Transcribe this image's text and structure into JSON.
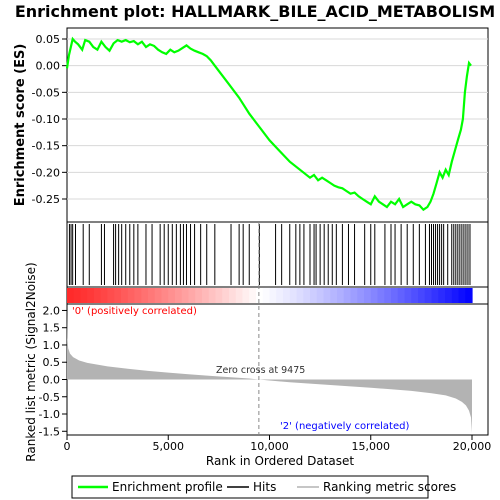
{
  "chart_data": [
    {
      "type": "line",
      "title": "Enrichment plot: HALLMARK_BILE_ACID_METABOLISM",
      "ylabel": "Enrichment score (ES)",
      "ylim": [
        -0.28,
        0.065
      ],
      "yticks": [
        0.05,
        0.0,
        -0.05,
        -0.1,
        -0.15,
        -0.2,
        -0.25
      ],
      "ytick_labels": [
        "0.05",
        "0.00",
        "-0.05",
        "-0.10",
        "-0.15",
        "-0.20",
        "-0.25"
      ],
      "xlim": [
        0,
        20000
      ],
      "series": [
        {
          "name": "Enrichment profile",
          "color": "#00ff00",
          "x": [
            0,
            100,
            280,
            400,
            550,
            750,
            900,
            1100,
            1300,
            1500,
            1700,
            1900,
            2100,
            2300,
            2500,
            2700,
            2900,
            3100,
            3300,
            3500,
            3700,
            3900,
            4100,
            4300,
            4500,
            4700,
            4900,
            5100,
            5300,
            5500,
            5700,
            5900,
            6100,
            6300,
            6500,
            6700,
            6900,
            7100,
            7300,
            7600,
            8000,
            8500,
            9000,
            9500,
            10000,
            10500,
            11000,
            11500,
            12000,
            12200,
            12400,
            12600,
            12800,
            13000,
            13200,
            13400,
            13600,
            13800,
            14000,
            14200,
            14400,
            14600,
            14800,
            15000,
            15200,
            15400,
            15600,
            15800,
            16000,
            16200,
            16400,
            16600,
            16800,
            17000,
            17200,
            17400,
            17600,
            17800,
            17950,
            18100,
            18250,
            18400,
            18550,
            18700,
            18850,
            19000,
            19150,
            19300,
            19450,
            19550,
            19650,
            19750,
            19850,
            19950
          ],
          "y": [
            -0.005,
            0.02,
            0.05,
            0.045,
            0.04,
            0.03,
            0.048,
            0.045,
            0.035,
            0.03,
            0.045,
            0.035,
            0.028,
            0.042,
            0.048,
            0.045,
            0.048,
            0.044,
            0.046,
            0.04,
            0.045,
            0.035,
            0.04,
            0.037,
            0.03,
            0.025,
            0.022,
            0.03,
            0.025,
            0.028,
            0.033,
            0.038,
            0.032,
            0.028,
            0.025,
            0.022,
            0.018,
            0.01,
            0.0,
            -0.015,
            -0.035,
            -0.06,
            -0.09,
            -0.115,
            -0.14,
            -0.16,
            -0.18,
            -0.195,
            -0.21,
            -0.205,
            -0.215,
            -0.21,
            -0.215,
            -0.22,
            -0.225,
            -0.228,
            -0.23,
            -0.235,
            -0.24,
            -0.238,
            -0.245,
            -0.25,
            -0.255,
            -0.26,
            -0.245,
            -0.255,
            -0.26,
            -0.265,
            -0.255,
            -0.26,
            -0.25,
            -0.265,
            -0.26,
            -0.255,
            -0.26,
            -0.262,
            -0.27,
            -0.265,
            -0.255,
            -0.24,
            -0.22,
            -0.2,
            -0.21,
            -0.195,
            -0.205,
            -0.18,
            -0.16,
            -0.14,
            -0.12,
            -0.1,
            -0.05,
            -0.02,
            0.005,
            0.0
          ]
        }
      ]
    },
    {
      "type": "bar",
      "name": "gene-set hits",
      "hits_color": "#000000",
      "hit_ranks": [
        120,
        200,
        280,
        420,
        800,
        1100,
        1700,
        1850,
        2300,
        2400,
        2550,
        2700,
        2900,
        3100,
        3300,
        3500,
        3900,
        4200,
        4600,
        4800,
        5000,
        5200,
        5400,
        5600,
        5750,
        5900,
        6100,
        6300,
        6600,
        6900,
        7300,
        8100,
        8500,
        8700,
        9000,
        9500,
        10300,
        10600,
        11000,
        11300,
        11500,
        11700,
        12000,
        12200,
        12300,
        12500,
        12700,
        12900,
        13100,
        13300,
        13600,
        13900,
        14200,
        14700,
        15000,
        15200,
        15700,
        16000,
        16200,
        16500,
        16800,
        17100,
        17400,
        17700,
        17900,
        18000,
        18100,
        18200,
        18300,
        18400,
        18500,
        18600,
        18800,
        19000,
        19100,
        19200,
        19300,
        19400,
        19500,
        19600,
        19700,
        19800,
        19900
      ]
    },
    {
      "type": "heatmap",
      "name": "rank-metric color band",
      "red_end_rank": 9475,
      "colors": [
        "#ff0000",
        "#0000ff"
      ]
    },
    {
      "type": "area",
      "ylabel": "Ranked list metric (Signal2Noise)",
      "xlabel": "Rank in Ordered Dataset",
      "xlim": [
        0,
        20000
      ],
      "ylim": [
        -1.55,
        2.1
      ],
      "xticks": [
        0,
        5000,
        10000,
        15000,
        20000
      ],
      "xtick_labels": [
        "0",
        "5,000",
        "10,000",
        "15,000",
        "20,000"
      ],
      "yticks": [
        2.0,
        1.5,
        1.0,
        0.5,
        0.0,
        -0.5,
        -1.0,
        -1.5
      ],
      "ytick_labels": [
        "2.0",
        "1.5",
        "1.0",
        "0.5",
        "0.0",
        "-0.5",
        "-1.0",
        "-1.5"
      ],
      "zero_cross": 9475,
      "series": [
        {
          "name": "Ranking metric scores",
          "color": "#b3b3b3",
          "x": [
            0,
            20,
            60,
            150,
            300,
            600,
            1000,
            2000,
            3000,
            4000,
            5000,
            6000,
            7000,
            8000,
            9000,
            9475,
            10000,
            11000,
            12000,
            13000,
            14000,
            15000,
            16000,
            17000,
            18000,
            18700,
            19200,
            19500,
            19700,
            19850,
            19950,
            20000
          ],
          "y": [
            2.0,
            1.2,
            0.9,
            0.75,
            0.65,
            0.55,
            0.48,
            0.38,
            0.31,
            0.25,
            0.2,
            0.15,
            0.11,
            0.07,
            0.03,
            0.0,
            -0.03,
            -0.08,
            -0.12,
            -0.16,
            -0.2,
            -0.24,
            -0.28,
            -0.33,
            -0.4,
            -0.46,
            -0.55,
            -0.65,
            -0.75,
            -0.9,
            -1.1,
            -1.55
          ]
        }
      ]
    }
  ],
  "labels": {
    "pos_label": "'0' (positively correlated)",
    "neg_label": "'2' (negatively correlated)",
    "zero_cross_label": "Zero cross at 9475"
  },
  "legend": {
    "items": [
      {
        "label": "Enrichment profile",
        "color": "#00ff00"
      },
      {
        "label": "Hits",
        "color": "#000000"
      },
      {
        "label": "Ranking metric scores",
        "color": "#b3b3b3"
      }
    ]
  },
  "colors": {
    "pos_text": "#ff0000",
    "neg_text": "#0000ff"
  }
}
